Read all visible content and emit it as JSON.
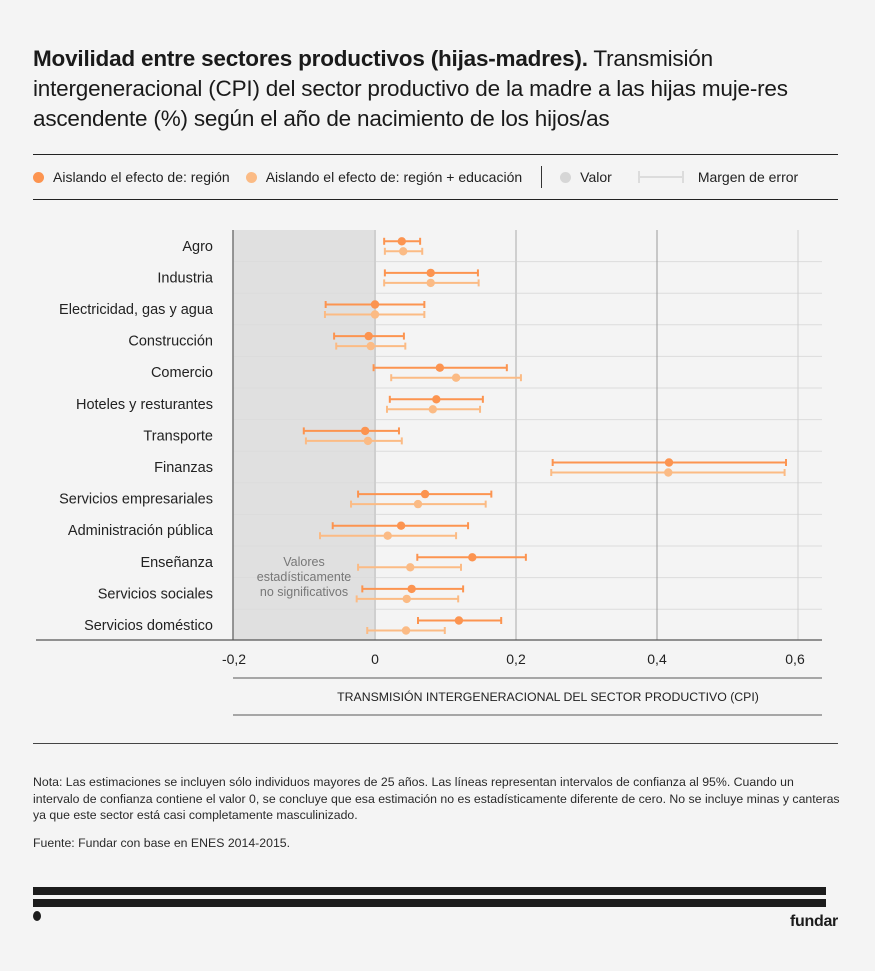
{
  "header": {
    "title_bold": "Movilidad entre sectores productivos (hijas-madres).",
    "title_rest": " Transmisión intergeneracional (CPI) del sector productivo de la madre a las hijas muje-res ascendente (%) según el año de nacimiento de los hijos/as"
  },
  "legend": {
    "series1": "Aislando el efecto de: región",
    "series2": "Aislando el efecto de: región + educación",
    "value": "Valor",
    "error": "Margen de error"
  },
  "colors": {
    "series1": "#fc9450",
    "series2": "#fbbb85",
    "value_gray": "#d6d6d6",
    "shade": "#e0e0e0",
    "background": "#f4f4f4"
  },
  "chart_data": {
    "type": "scatter",
    "subtype": "dot-plot-with-error-bars",
    "orientation": "horizontal",
    "title": "Movilidad entre sectores productivos (hijas-madres). Transmisión intergeneracional (CPI) del sector productivo de la madre a las hijas mujeres ascendente (%) según el año de nacimiento de los hijos/as",
    "xlabel": "TRANSMISIÓN INTERGENERACIONAL DEL SECTOR PRODUCTIVO (CPI)",
    "ylabel": "",
    "xlim": [
      -0.2,
      0.63
    ],
    "xticks": [
      -0.2,
      0,
      0.2,
      0.4,
      0.6
    ],
    "xtick_labels": [
      "-0,2",
      "0",
      "0,2",
      "0,4",
      "0,6"
    ],
    "grid": true,
    "legend_position": "top",
    "shaded_region": {
      "from": -0.2,
      "to": 0,
      "label": "Valores estadísticamente no significativos"
    },
    "categories": [
      "Agro",
      "Industria",
      "Electricidad, gas y agua",
      "Construcción",
      "Comercio",
      "Hoteles y resturantes",
      "Transporte",
      "Finanzas",
      "Servicios empresariales",
      "Administración pública",
      "Enseñanza",
      "Servicios sociales",
      "Servicios doméstico"
    ],
    "series": [
      {
        "name": "Aislando el efecto de: región",
        "values": [
          0.038,
          0.079,
          0.0,
          -0.009,
          0.092,
          0.087,
          -0.014,
          0.417,
          0.071,
          0.037,
          0.138,
          0.052,
          0.119
        ],
        "ci_low": [
          0.013,
          0.014,
          -0.07,
          -0.058,
          -0.002,
          0.021,
          -0.101,
          0.252,
          -0.024,
          -0.06,
          0.06,
          -0.018,
          0.061
        ],
        "ci_high": [
          0.064,
          0.146,
          0.07,
          0.041,
          0.187,
          0.153,
          0.034,
          0.583,
          0.165,
          0.132,
          0.214,
          0.125,
          0.179
        ]
      },
      {
        "name": "Aislando el efecto de: región + educación",
        "values": [
          0.04,
          0.079,
          0.0,
          -0.006,
          0.115,
          0.082,
          -0.01,
          0.416,
          0.061,
          0.018,
          0.05,
          0.045,
          0.044
        ],
        "ci_low": [
          0.014,
          0.013,
          -0.071,
          -0.055,
          0.023,
          0.017,
          -0.098,
          0.25,
          -0.034,
          -0.078,
          -0.024,
          -0.026,
          -0.011
        ],
        "ci_high": [
          0.067,
          0.147,
          0.07,
          0.043,
          0.207,
          0.149,
          0.038,
          0.581,
          0.157,
          0.115,
          0.122,
          0.118,
          0.099
        ]
      }
    ]
  },
  "footer": {
    "note": "Nota: Las estimaciones se incluyen sólo individuos mayores de 25 años. Las líneas representan intervalos de confianza al 95%. Cuando un intervalo de confianza contiene el valor 0, se concluye que esa estimación no es estadísticamente diferente de cero. No se incluye minas y canteras ya que este sector está casi completamente masculinizado.",
    "source": "Fuente: Fundar con base en ENES 2014-2015.",
    "brand": "fundar"
  }
}
